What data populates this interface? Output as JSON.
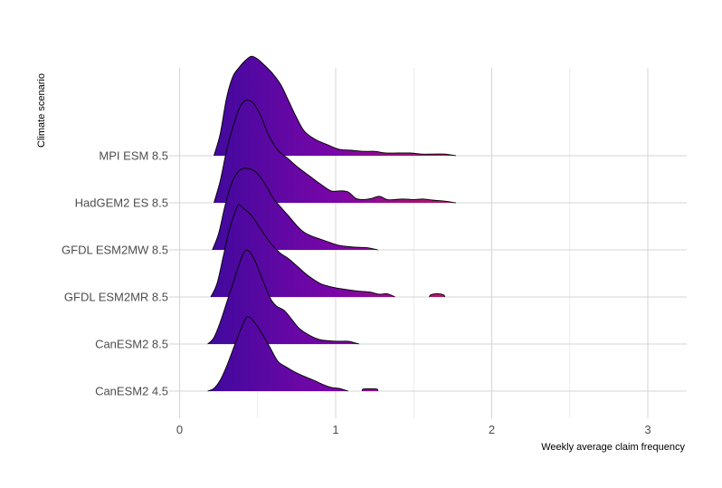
{
  "chart_data": {
    "type": "ridgeline",
    "title": "",
    "xlabel": "Weekly average claim frequency",
    "ylabel": "Climate scenario",
    "xlim": [
      -0.05,
      3.25
    ],
    "x_ticks": [
      0,
      1,
      2,
      3
    ],
    "x_tick_labels": [
      "0",
      "1",
      "2",
      "3"
    ],
    "grid": true,
    "fill_gradient": {
      "low": "#2f0a9a",
      "mid": "#7a06a8",
      "high": "#c01c55"
    },
    "outline_color": "#000000",
    "categories": [
      "CanESM2 4.5",
      "CanESM2 8.5",
      "GFDL ESM2MR 8.5",
      "GFDL ESM2MW 8.5",
      "HadGEM2 ES 8.5",
      "MPI ESM 8.5"
    ],
    "series": [
      {
        "name": "CanESM2 4.5",
        "ranges": [
          [
            0.18,
            1.08
          ],
          [
            1.17,
            1.27
          ]
        ],
        "density": [
          [
            0.18,
            0
          ],
          [
            0.22,
            0.05
          ],
          [
            0.26,
            0.2
          ],
          [
            0.3,
            0.45
          ],
          [
            0.34,
            0.75
          ],
          [
            0.38,
            1.05
          ],
          [
            0.42,
            1.32
          ],
          [
            0.44,
            1.37
          ],
          [
            0.47,
            1.3
          ],
          [
            0.52,
            1.1
          ],
          [
            0.58,
            0.8
          ],
          [
            0.63,
            0.55
          ],
          [
            0.68,
            0.45
          ],
          [
            0.74,
            0.35
          ],
          [
            0.8,
            0.27
          ],
          [
            0.86,
            0.2
          ],
          [
            0.92,
            0.12
          ],
          [
            0.97,
            0.07
          ],
          [
            1.02,
            0.05
          ],
          [
            1.08,
            0
          ],
          [
            1.17,
            0
          ],
          [
            1.18,
            0.04
          ],
          [
            1.26,
            0.04
          ],
          [
            1.27,
            0
          ]
        ]
      },
      {
        "name": "CanESM2 8.5",
        "ranges": [
          [
            0.18,
            1.15
          ]
        ],
        "density": [
          [
            0.18,
            0
          ],
          [
            0.22,
            0.12
          ],
          [
            0.26,
            0.4
          ],
          [
            0.3,
            0.75
          ],
          [
            0.34,
            1.1
          ],
          [
            0.38,
            1.45
          ],
          [
            0.41,
            1.68
          ],
          [
            0.44,
            1.72
          ],
          [
            0.48,
            1.55
          ],
          [
            0.53,
            1.2
          ],
          [
            0.58,
            0.85
          ],
          [
            0.62,
            0.7
          ],
          [
            0.67,
            0.62
          ],
          [
            0.72,
            0.45
          ],
          [
            0.77,
            0.28
          ],
          [
            0.84,
            0.15
          ],
          [
            0.9,
            0.08
          ],
          [
            0.96,
            0.06
          ],
          [
            1.02,
            0.05
          ],
          [
            1.08,
            0.05
          ],
          [
            1.15,
            0
          ]
        ]
      },
      {
        "name": "GFDL ESM2MR 8.5",
        "ranges": [
          [
            0.2,
            1.38
          ],
          [
            1.6,
            1.7
          ]
        ],
        "density": [
          [
            0.2,
            0
          ],
          [
            0.24,
            0.25
          ],
          [
            0.28,
            0.75
          ],
          [
            0.32,
            1.25
          ],
          [
            0.36,
            1.6
          ],
          [
            0.38,
            1.7
          ],
          [
            0.41,
            1.63
          ],
          [
            0.46,
            1.5
          ],
          [
            0.52,
            1.25
          ],
          [
            0.58,
            1.0
          ],
          [
            0.64,
            0.82
          ],
          [
            0.7,
            0.7
          ],
          [
            0.76,
            0.55
          ],
          [
            0.82,
            0.4
          ],
          [
            0.9,
            0.25
          ],
          [
            0.98,
            0.18
          ],
          [
            1.06,
            0.14
          ],
          [
            1.14,
            0.11
          ],
          [
            1.22,
            0.09
          ],
          [
            1.28,
            0.05
          ],
          [
            1.33,
            0.06
          ],
          [
            1.38,
            0
          ],
          [
            1.6,
            0
          ],
          [
            1.61,
            0.04
          ],
          [
            1.65,
            0.06
          ],
          [
            1.69,
            0.04
          ],
          [
            1.7,
            0
          ]
        ]
      },
      {
        "name": "GFDL ESM2MW 8.5",
        "ranges": [
          [
            0.21,
            1.27
          ]
        ],
        "density": [
          [
            0.21,
            0
          ],
          [
            0.25,
            0.3
          ],
          [
            0.29,
            0.8
          ],
          [
            0.33,
            1.2
          ],
          [
            0.37,
            1.42
          ],
          [
            0.41,
            1.5
          ],
          [
            0.46,
            1.48
          ],
          [
            0.5,
            1.4
          ],
          [
            0.55,
            1.2
          ],
          [
            0.6,
            0.95
          ],
          [
            0.65,
            0.78
          ],
          [
            0.7,
            0.62
          ],
          [
            0.75,
            0.45
          ],
          [
            0.8,
            0.32
          ],
          [
            0.85,
            0.25
          ],
          [
            0.9,
            0.2
          ],
          [
            0.95,
            0.15
          ],
          [
            1.0,
            0.1
          ],
          [
            1.05,
            0.07
          ],
          [
            1.12,
            0.05
          ],
          [
            1.2,
            0.04
          ],
          [
            1.27,
            0
          ]
        ]
      },
      {
        "name": "HadGEM2 ES 8.5",
        "ranges": [
          [
            0.22,
            1.77
          ]
        ],
        "density": [
          [
            0.22,
            0
          ],
          [
            0.26,
            0.4
          ],
          [
            0.3,
            0.95
          ],
          [
            0.34,
            1.38
          ],
          [
            0.38,
            1.72
          ],
          [
            0.42,
            1.88
          ],
          [
            0.47,
            1.84
          ],
          [
            0.52,
            1.6
          ],
          [
            0.57,
            1.25
          ],
          [
            0.63,
            0.97
          ],
          [
            0.7,
            0.8
          ],
          [
            0.76,
            0.65
          ],
          [
            0.83,
            0.5
          ],
          [
            0.9,
            0.35
          ],
          [
            0.97,
            0.22
          ],
          [
            1.03,
            0.22
          ],
          [
            1.08,
            0.2
          ],
          [
            1.13,
            0.08
          ],
          [
            1.18,
            0.06
          ],
          [
            1.23,
            0.08
          ],
          [
            1.28,
            0.12
          ],
          [
            1.33,
            0.06
          ],
          [
            1.38,
            0.06
          ],
          [
            1.43,
            0.07
          ],
          [
            1.5,
            0.06
          ],
          [
            1.56,
            0.07
          ],
          [
            1.62,
            0.05
          ],
          [
            1.7,
            0.03
          ],
          [
            1.77,
            0
          ]
        ]
      },
      {
        "name": "MPI ESM 8.5",
        "ranges": [
          [
            0.22,
            1.77
          ]
        ],
        "density": [
          [
            0.22,
            0
          ],
          [
            0.26,
            0.4
          ],
          [
            0.3,
            1.05
          ],
          [
            0.34,
            1.45
          ],
          [
            0.38,
            1.62
          ],
          [
            0.42,
            1.75
          ],
          [
            0.46,
            1.83
          ],
          [
            0.5,
            1.78
          ],
          [
            0.55,
            1.65
          ],
          [
            0.6,
            1.5
          ],
          [
            0.65,
            1.3
          ],
          [
            0.7,
            1.0
          ],
          [
            0.75,
            0.7
          ],
          [
            0.8,
            0.45
          ],
          [
            0.87,
            0.3
          ],
          [
            0.95,
            0.2
          ],
          [
            1.02,
            0.12
          ],
          [
            1.1,
            0.1
          ],
          [
            1.18,
            0.08
          ],
          [
            1.25,
            0.08
          ],
          [
            1.32,
            0.05
          ],
          [
            1.4,
            0.05
          ],
          [
            1.48,
            0.05
          ],
          [
            1.55,
            0.03
          ],
          [
            1.62,
            0.03
          ],
          [
            1.7,
            0.03
          ],
          [
            1.77,
            0
          ]
        ]
      }
    ]
  }
}
